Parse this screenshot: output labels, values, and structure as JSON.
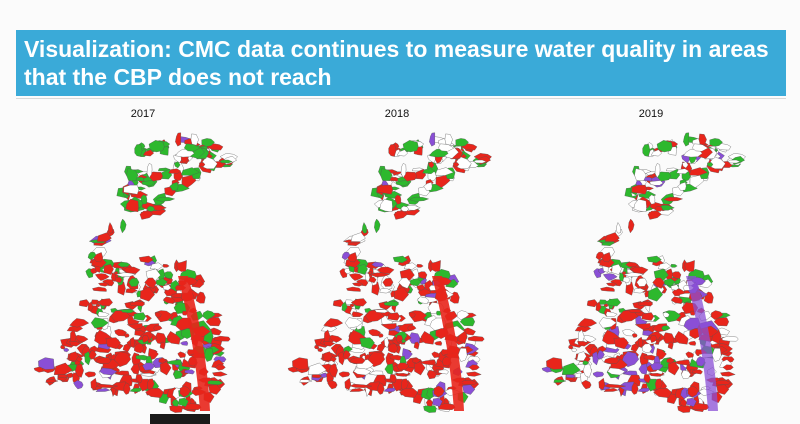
{
  "slide": {
    "title_line1": "Visualization: CMC data continues to measure water quality in areas",
    "title_line2": "that the CBP does not reach",
    "banner_color": "#3aaad8"
  },
  "maps": [
    {
      "year": "2017",
      "mix": {
        "green": 0.4,
        "red": 0.55,
        "white": 0.1,
        "purple": 0.06
      }
    },
    {
      "year": "2018",
      "mix": {
        "green": 0.28,
        "red": 0.55,
        "white": 0.36,
        "purple": 0.07
      }
    },
    {
      "year": "2019",
      "mix": {
        "green": 0.26,
        "red": 0.48,
        "white": 0.45,
        "purple": 0.14
      }
    }
  ],
  "legend_colors": {
    "green": "#2db82d",
    "red": "#e8251b",
    "purple": "#8a4fd6",
    "white": "#ffffff"
  }
}
